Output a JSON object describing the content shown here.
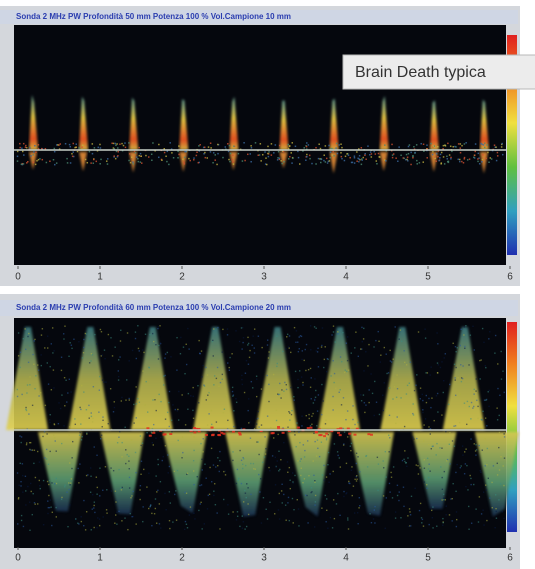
{
  "panels": [
    {
      "header": "Sonda 2 MHz PW  Profondità 50 mm  Potenza 100 %  Vol.Campione 10 mm",
      "x_labels": [
        "0",
        "1",
        "2",
        "3",
        "4",
        "5",
        "6"
      ]
    },
    {
      "header": "Sonda 2 MHz PW  Profondità 60 mm  Potenza 100 %  Vol.Campione 20 mm",
      "x_labels": [
        "0",
        "1",
        "2",
        "3",
        "4",
        "5",
        "6"
      ]
    }
  ],
  "tooltip": {
    "text": "Brain Death typica"
  }
}
